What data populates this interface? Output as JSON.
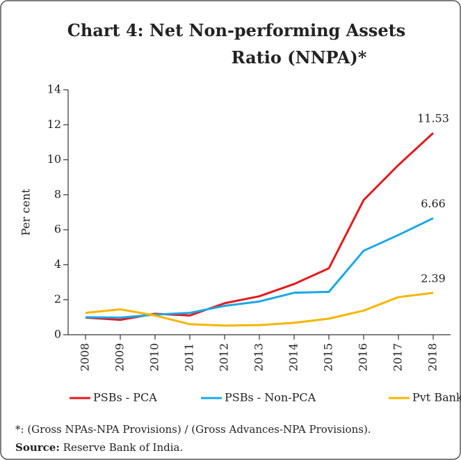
{
  "chart_data": {
    "type": "line",
    "title_lines": [
      "Chart 4: Net Non-performing Assets",
      "Ratio (NNPA)*"
    ],
    "y_label": "Per cent",
    "categories": [
      "2008",
      "2009",
      "2010",
      "2011",
      "2012",
      "2013",
      "2014",
      "2015",
      "2016",
      "2017",
      "2018"
    ],
    "series": [
      {
        "name": "PSBs - PCA",
        "color": "#e41a1c",
        "values": [
          0.98,
          0.85,
          1.2,
          1.1,
          1.8,
          2.2,
          2.9,
          3.8,
          7.7,
          9.7,
          11.53
        ]
      },
      {
        "name": "PSBs - Non-PCA",
        "color": "#1aa7e8",
        "values": [
          1.0,
          0.98,
          1.15,
          1.25,
          1.65,
          1.9,
          2.4,
          2.45,
          4.8,
          5.7,
          6.66
        ]
      },
      {
        "name": "Pvt Banks",
        "color": "#f7b500",
        "values": [
          1.25,
          1.45,
          1.1,
          0.6,
          0.52,
          0.55,
          0.68,
          0.92,
          1.38,
          2.15,
          2.39
        ]
      }
    ],
    "ylim": [
      0,
      14
    ],
    "yticks": [
      0,
      2,
      4,
      6,
      8,
      10,
      12,
      14
    ],
    "legend": "bottom",
    "note": "*: (Gross NPAs-NPA Provisions) / (Gross Advances-NPA Provisions).",
    "source_label": "Source:",
    "source": "Reserve Bank of India."
  }
}
